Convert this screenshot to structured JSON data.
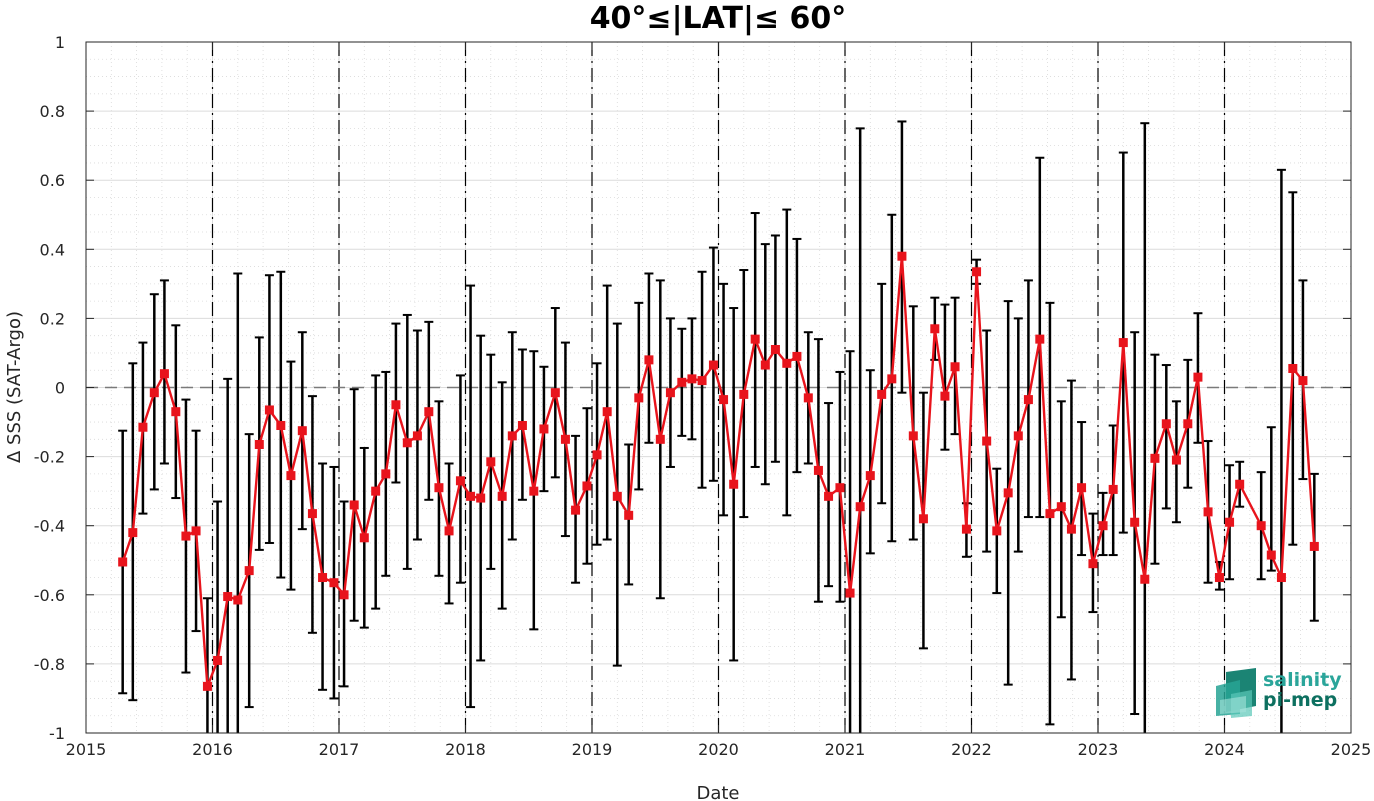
{
  "chart_data": {
    "type": "line",
    "title": "40°≤|LAT|≤ 60°",
    "xlabel": "Date",
    "ylabel": "Δ SSS (SAT-Argo)",
    "xlim": [
      2015,
      2025
    ],
    "ylim": [
      -1,
      1
    ],
    "x_tick_labels": [
      "2015",
      "2016",
      "2017",
      "2018",
      "2019",
      "2020",
      "2021",
      "2022",
      "2023",
      "2024",
      "2025"
    ],
    "y_tick_labels": [
      "1",
      "0.8",
      "0.6",
      "0.4",
      "0.2",
      "0",
      "-0.2",
      "-0.4",
      "-0.6",
      "-0.8",
      "-1"
    ],
    "grid": true,
    "minor_grid": true,
    "reference_line_y": 0,
    "year_boundary_lines": true,
    "series": [
      {
        "marker": "square",
        "color": "#e8141c",
        "errorbar_color": "#000000",
        "x": [
          2015.29,
          2015.37,
          2015.45,
          2015.54,
          2015.62,
          2015.71,
          2015.79,
          2015.87,
          2015.96,
          2016.04,
          2016.12,
          2016.2,
          2016.29,
          2016.37,
          2016.45,
          2016.54,
          2016.62,
          2016.71,
          2016.79,
          2016.87,
          2016.96,
          2017.04,
          2017.12,
          2017.2,
          2017.29,
          2017.37,
          2017.45,
          2017.54,
          2017.62,
          2017.71,
          2017.79,
          2017.87,
          2017.96,
          2018.04,
          2018.12,
          2018.2,
          2018.29,
          2018.37,
          2018.45,
          2018.54,
          2018.62,
          2018.71,
          2018.79,
          2018.87,
          2018.96,
          2019.04,
          2019.12,
          2019.2,
          2019.29,
          2019.37,
          2019.45,
          2019.54,
          2019.62,
          2019.71,
          2019.79,
          2019.87,
          2019.96,
          2020.04,
          2020.12,
          2020.2,
          2020.29,
          2020.37,
          2020.45,
          2020.54,
          2020.62,
          2020.71,
          2020.79,
          2020.87,
          2020.96,
          2021.04,
          2021.12,
          2021.2,
          2021.29,
          2021.37,
          2021.45,
          2021.54,
          2021.62,
          2021.71,
          2021.79,
          2021.87,
          2021.96,
          2022.04,
          2022.12,
          2022.2,
          2022.29,
          2022.37,
          2022.45,
          2022.54,
          2022.62,
          2022.71,
          2022.79,
          2022.87,
          2022.96,
          2023.04,
          2023.12,
          2023.2,
          2023.29,
          2023.37,
          2023.45,
          2023.54,
          2023.62,
          2023.71,
          2023.79,
          2023.87,
          2023.96,
          2024.04,
          2024.12,
          2024.29,
          2024.37,
          2024.45,
          2024.54,
          2024.62,
          2024.71
        ],
        "y": [
          -0.505,
          -0.42,
          -0.115,
          -0.015,
          0.04,
          -0.07,
          -0.43,
          -0.415,
          -0.865,
          -0.79,
          -0.605,
          -0.615,
          -0.53,
          -0.165,
          -0.065,
          -0.11,
          -0.255,
          -0.125,
          -0.365,
          -0.55,
          -0.565,
          -0.6,
          -0.34,
          -0.435,
          -0.3,
          -0.25,
          -0.05,
          -0.16,
          -0.14,
          -0.07,
          -0.29,
          -0.415,
          -0.27,
          -0.315,
          -0.32,
          -0.215,
          -0.315,
          -0.14,
          -0.11,
          -0.3,
          -0.12,
          -0.015,
          -0.15,
          -0.355,
          -0.285,
          -0.195,
          -0.07,
          -0.315,
          -0.37,
          -0.03,
          0.08,
          -0.15,
          -0.015,
          0.015,
          0.025,
          0.02,
          0.065,
          -0.035,
          -0.28,
          -0.02,
          0.14,
          0.065,
          0.11,
          0.07,
          0.09,
          -0.03,
          -0.24,
          -0.315,
          -0.29,
          -0.595,
          -0.345,
          -0.255,
          -0.02,
          0.025,
          0.38,
          -0.14,
          -0.38,
          0.17,
          -0.025,
          0.06,
          -0.41,
          0.335,
          -0.155,
          -0.415,
          -0.305,
          -0.14,
          -0.035,
          0.14,
          -0.365,
          -0.345,
          -0.41,
          -0.29,
          -0.51,
          -0.4,
          -0.295,
          0.13,
          -0.39,
          -0.555,
          -0.205,
          -0.105,
          -0.21,
          -0.105,
          0.03,
          -0.36,
          -0.55,
          -0.39,
          -0.28,
          -0.4,
          -0.485,
          -0.55,
          0.055,
          0.02,
          -0.46
        ],
        "err_upper": [
          -0.125,
          0.07,
          0.13,
          0.27,
          0.31,
          0.18,
          -0.035,
          -0.125,
          -0.61,
          -0.33,
          0.025,
          0.33,
          -0.135,
          0.145,
          0.325,
          0.335,
          0.075,
          0.16,
          -0.025,
          -0.22,
          -0.23,
          -0.33,
          -0.005,
          -0.175,
          0.035,
          0.045,
          0.185,
          0.21,
          0.165,
          0.19,
          -0.04,
          -0.22,
          0.035,
          0.295,
          0.15,
          0.095,
          0.015,
          0.16,
          0.11,
          0.105,
          0.06,
          0.23,
          0.13,
          -0.14,
          -0.06,
          0.07,
          0.295,
          0.185,
          -0.165,
          0.245,
          0.33,
          0.31,
          0.2,
          0.17,
          0.2,
          0.335,
          0.405,
          0.3,
          0.23,
          0.34,
          0.505,
          0.415,
          0.44,
          0.515,
          0.43,
          0.16,
          0.14,
          -0.045,
          0.045,
          0.105,
          0.75,
          0.05,
          0.3,
          0.5,
          0.77,
          0.235,
          -0.015,
          0.26,
          0.24,
          0.26,
          -0.335,
          0.37,
          0.165,
          -0.235,
          0.25,
          0.2,
          0.31,
          0.665,
          0.245,
          -0.04,
          0.02,
          -0.1,
          -0.365,
          -0.305,
          -0.11,
          0.68,
          0.16,
          0.765,
          0.095,
          0.065,
          -0.04,
          0.08,
          0.215,
          -0.155,
          -0.505,
          -0.225,
          -0.215,
          -0.245,
          -0.115,
          0.63,
          0.565,
          0.31,
          -0.25
        ],
        "err_lower": [
          -0.885,
          -0.905,
          -0.365,
          -0.295,
          -0.22,
          -0.32,
          -0.825,
          -0.705,
          -1.0,
          -1.0,
          -1.0,
          -1.0,
          -0.925,
          -0.47,
          -0.45,
          -0.55,
          -0.585,
          -0.41,
          -0.71,
          -0.875,
          -0.9,
          -0.865,
          -0.675,
          -0.695,
          -0.64,
          -0.545,
          -0.275,
          -0.525,
          -0.44,
          -0.325,
          -0.545,
          -0.625,
          -0.565,
          -0.925,
          -0.79,
          -0.525,
          -0.64,
          -0.44,
          -0.325,
          -0.7,
          -0.3,
          -0.26,
          -0.43,
          -0.565,
          -0.51,
          -0.455,
          -0.44,
          -0.805,
          -0.57,
          -0.295,
          -0.16,
          -0.61,
          -0.23,
          -0.14,
          -0.15,
          -0.29,
          -0.27,
          -0.37,
          -0.79,
          -0.375,
          -0.23,
          -0.28,
          -0.215,
          -0.37,
          -0.245,
          -0.22,
          -0.62,
          -0.575,
          -0.62,
          -1.0,
          -1.0,
          -0.48,
          -0.335,
          -0.445,
          -0.015,
          -0.44,
          -0.755,
          0.08,
          -0.18,
          -0.135,
          -0.49,
          0.3,
          -0.475,
          -0.595,
          -0.86,
          -0.475,
          -0.375,
          -0.375,
          -0.975,
          -0.665,
          -0.845,
          -0.485,
          -0.65,
          -0.485,
          -0.485,
          -0.42,
          -0.945,
          -1.0,
          -0.51,
          -0.35,
          -0.39,
          -0.29,
          -0.16,
          -0.565,
          -0.585,
          -0.555,
          -0.345,
          -0.555,
          -0.53,
          -1.0,
          -0.455,
          -0.265,
          -0.675
        ]
      }
    ]
  },
  "logo": {
    "line1": "salinity",
    "line2": "pi-mep",
    "color_top": "#2aa59a",
    "color_bottom": "#0d7060"
  }
}
